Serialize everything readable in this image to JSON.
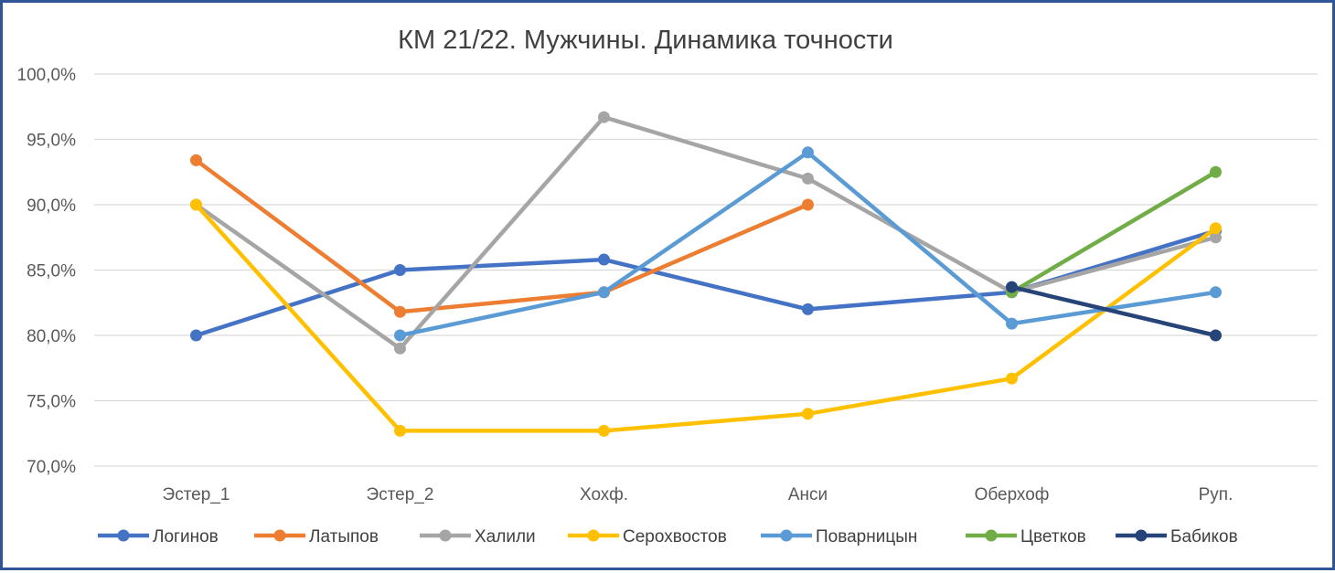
{
  "chart_data": {
    "type": "line",
    "title": "КМ 21/22. Мужчины. Динамика точности",
    "xlabel": "",
    "ylabel": "",
    "categories": [
      "Эстер_1",
      "Эстер_2",
      "Хохф.",
      "Анси",
      "Оберхоф",
      "Руп."
    ],
    "ylim": [
      0.7,
      1.0
    ],
    "yticks": [
      0.7,
      0.75,
      0.8,
      0.85,
      0.9,
      0.95,
      1.0
    ],
    "ytick_labels": [
      "70,0%",
      "75,0%",
      "80,0%",
      "85,0%",
      "90,0%",
      "95,0%",
      "100,0%"
    ],
    "grid": true,
    "legend_position": "bottom",
    "series": [
      {
        "name": "Логинов",
        "color": "#4472c4",
        "values": [
          0.8,
          0.85,
          0.858,
          0.82,
          0.833,
          0.88
        ]
      },
      {
        "name": "Латыпов",
        "color": "#ed7d31",
        "values": [
          0.934,
          0.818,
          0.833,
          0.9,
          null,
          null
        ]
      },
      {
        "name": "Халили",
        "color": "#a5a5a5",
        "values": [
          0.9,
          0.79,
          0.967,
          0.92,
          0.833,
          0.875
        ]
      },
      {
        "name": "Серохвостов",
        "color": "#ffc000",
        "values": [
          0.9,
          0.727,
          0.727,
          0.74,
          0.767,
          0.882
        ]
      },
      {
        "name": "Поварницын",
        "color": "#5b9bd5",
        "values": [
          null,
          0.8,
          0.833,
          0.94,
          0.809,
          0.833
        ]
      },
      {
        "name": "Цветков",
        "color": "#70ad47",
        "values": [
          null,
          null,
          null,
          null,
          0.833,
          0.925
        ]
      },
      {
        "name": "Бабиков",
        "color": "#264478",
        "values": [
          null,
          null,
          null,
          null,
          0.837,
          0.8
        ]
      }
    ]
  }
}
